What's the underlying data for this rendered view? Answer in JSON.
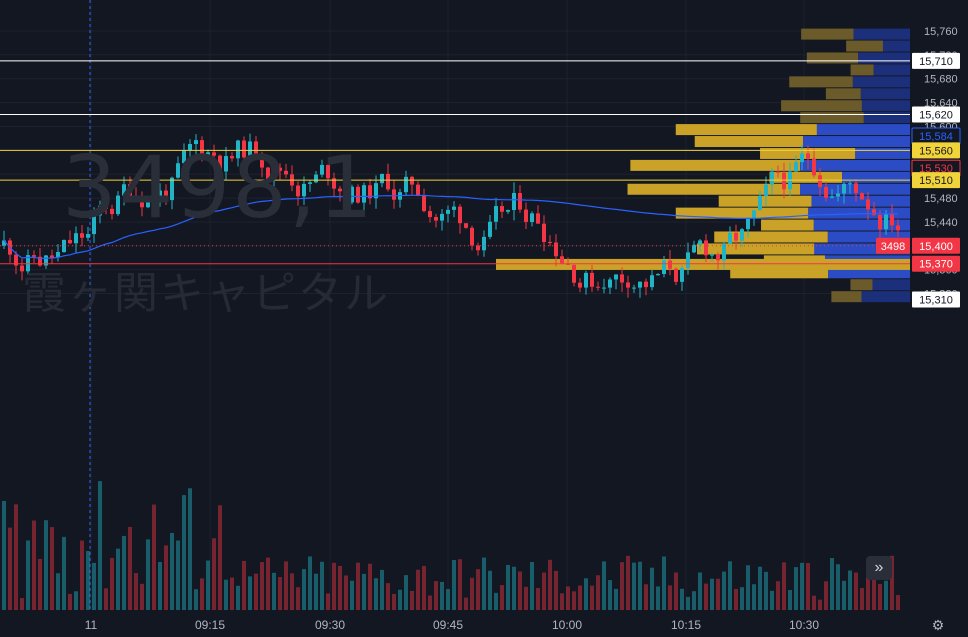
{
  "symbol": {
    "code": "3498",
    "name": "霞ヶ関キャピタル",
    "last": "3498,1"
  },
  "chart_data": {
    "type": "candlestick",
    "interval_minutes": 1,
    "x_ticks": [
      "11",
      "09:15",
      "09:30",
      "09:45",
      "10:00",
      "10:15",
      "10:30"
    ],
    "y_ticks": [
      15320,
      15360,
      15400,
      15440,
      15480,
      15520,
      15560,
      15600,
      15640,
      15680,
      15720,
      15760
    ],
    "y_range": [
      15300,
      15770
    ],
    "price_labels": [
      {
        "value": 15710,
        "text": "15,710",
        "style": "white"
      },
      {
        "value": 15620,
        "text": "15,620",
        "style": "white"
      },
      {
        "value": 15584,
        "text": "15,584",
        "style": "blue"
      },
      {
        "value": 15560,
        "text": "15,560",
        "style": "yellow"
      },
      {
        "value": 15530,
        "text": "15,530",
        "style": "red"
      },
      {
        "value": 15510,
        "text": "15,510",
        "style": "yellow"
      },
      {
        "value": 15400,
        "text": "15,400",
        "style": "redfill",
        "tag": "3498"
      },
      {
        "value": 15370,
        "text": "15,370",
        "style": "redfill"
      },
      {
        "value": 15310,
        "text": "15,310",
        "style": "white"
      }
    ],
    "horizontal_lines": [
      {
        "value": 15710,
        "color": "#ffffff"
      },
      {
        "value": 15620,
        "color": "#ffffff"
      },
      {
        "value": 15560,
        "color": "#f0d43a"
      },
      {
        "value": 15510,
        "color": "#f0d43a"
      },
      {
        "value": 15370,
        "color": "#f23645"
      }
    ],
    "current_price": 15400,
    "colors": {
      "up": "#22b4c6",
      "down": "#f23645",
      "vwap": "#2962ff",
      "vp_gold": "#c9a227",
      "vp_olive": "#6b5a2a",
      "vp_blue": "#2b4cc4",
      "vp_navy": "#1c2f7a"
    }
  }
}
